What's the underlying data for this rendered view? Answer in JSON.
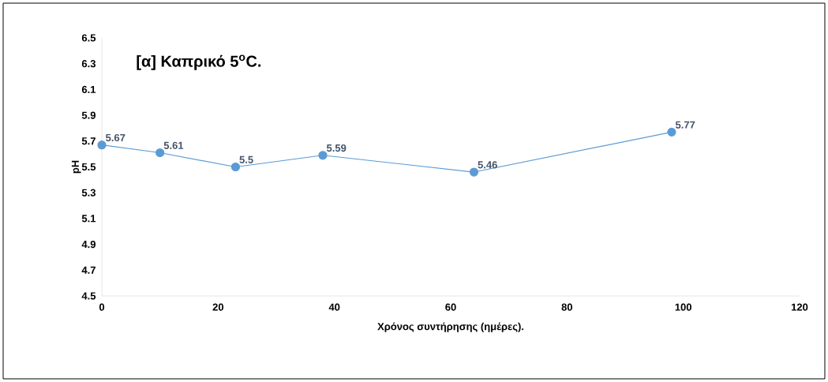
{
  "chart_data": {
    "type": "line",
    "title": "[α] Καπρικό 5$^{o}$C.",
    "xlabel": "Χρόνος συντήρησης (ημέρες).",
    "ylabel": "pH",
    "x": [
      0,
      10,
      23,
      38,
      64,
      98
    ],
    "values": [
      5.67,
      5.61,
      5.5,
      5.59,
      5.46,
      5.77
    ],
    "color": "#5b9bd5",
    "marker": "circle",
    "data_labels": true,
    "grid": false,
    "xlim": [
      0,
      120
    ],
    "xticks": [
      0,
      20,
      40,
      60,
      80,
      100,
      120
    ],
    "ylim": [
      4.5,
      6.5
    ],
    "yticks": [
      4.5,
      4.7,
      4.9,
      5.1,
      5.3,
      5.5,
      5.7,
      5.9,
      6.1,
      6.3,
      6.5
    ]
  }
}
